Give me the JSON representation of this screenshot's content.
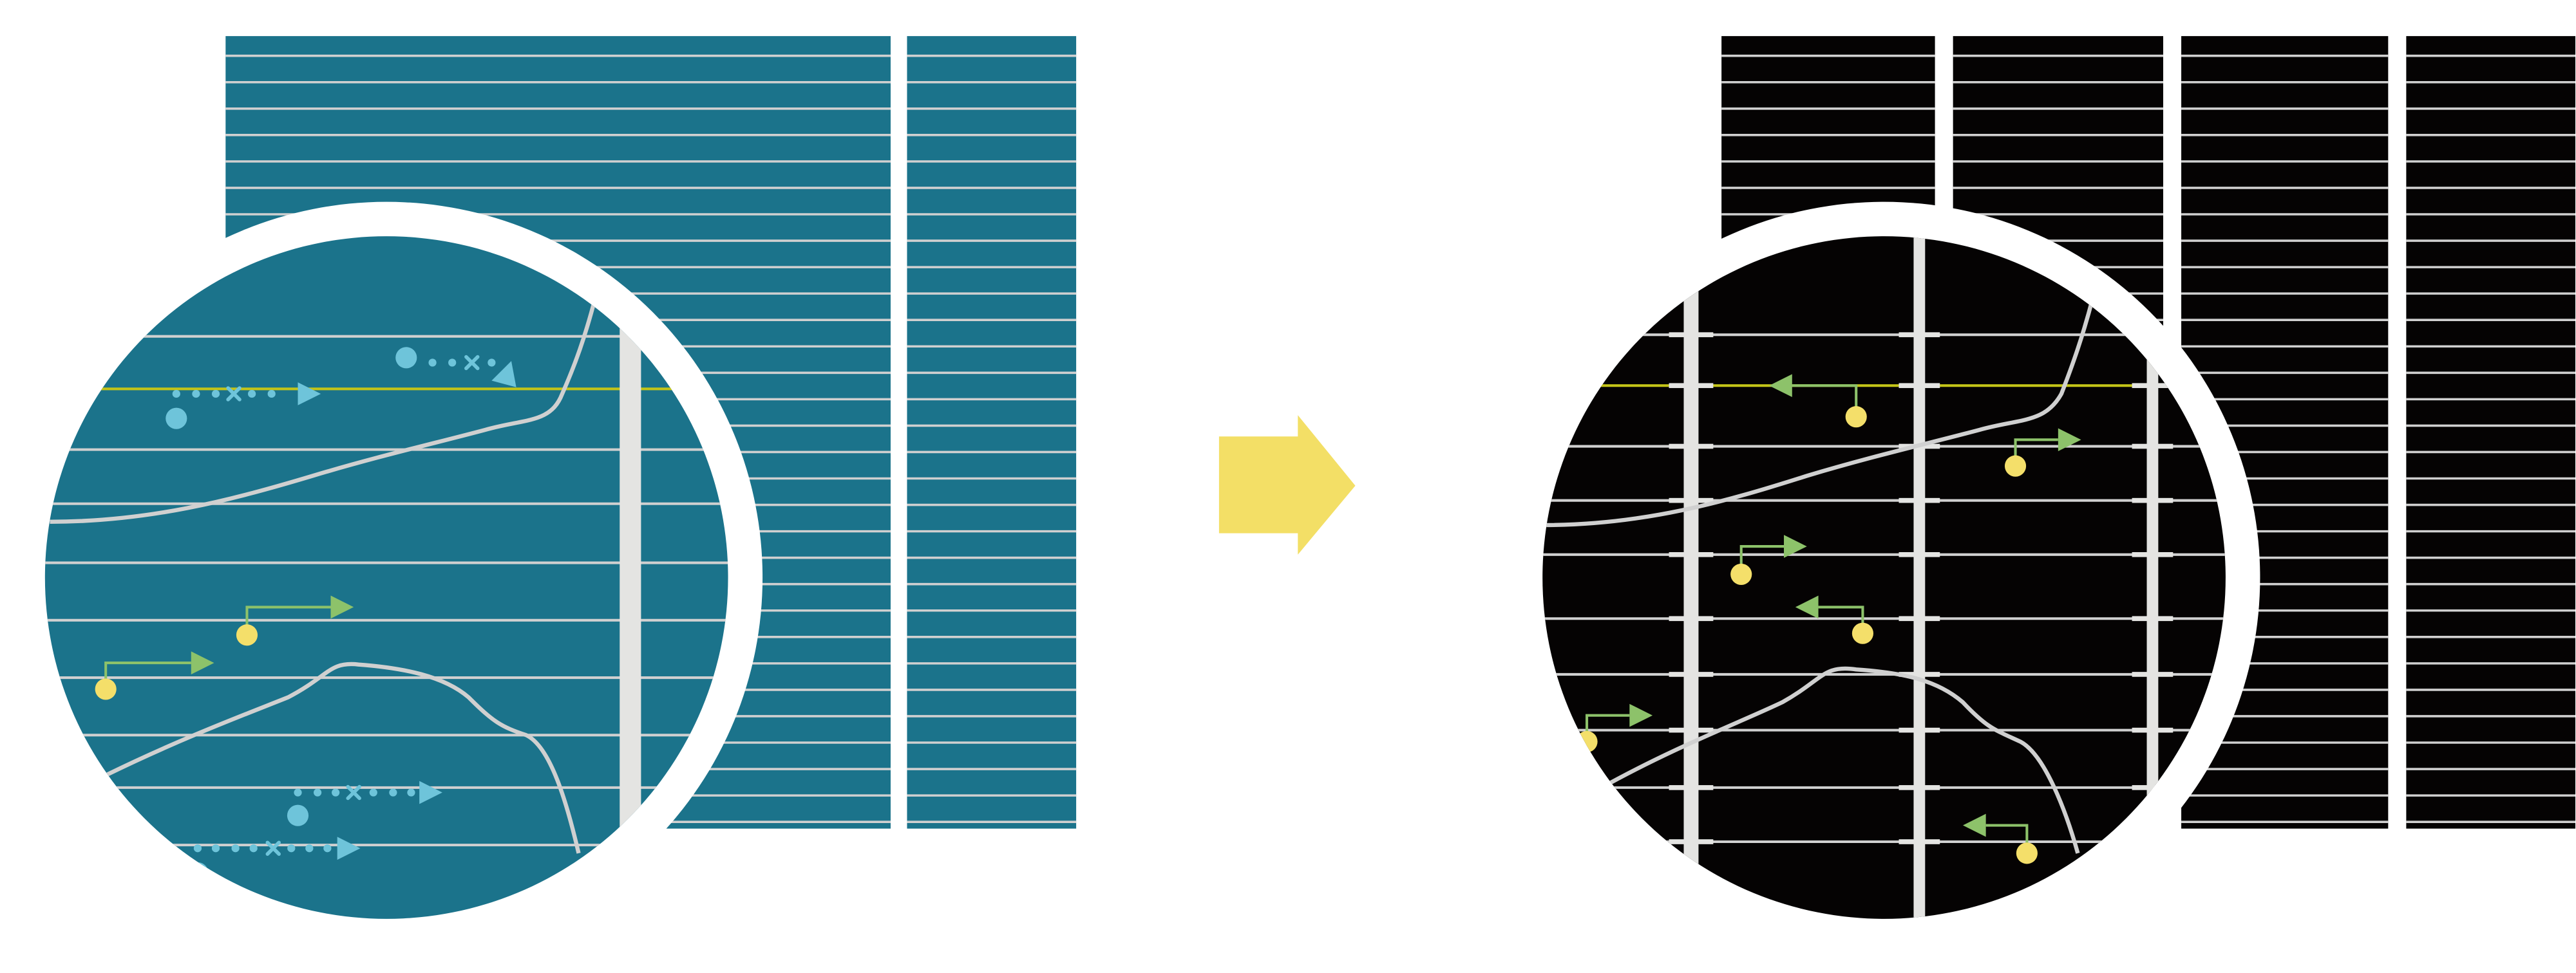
{
  "colors": {
    "background": "#ffffff",
    "before_panel": "#1b738b",
    "after_panel": "#050303",
    "grid_line": "#d0d0d0",
    "bar": "#e4e4e2",
    "highlight_line": "#c3c418",
    "cyan_marker": "#6ec4da",
    "green_arrow": "#8dc26a",
    "yellow_dot": "#f4df6a",
    "transition_arrow": "#f3df66"
  },
  "icons": {
    "before": "magnifier-teal-grid",
    "transition": "arrow-right-icon",
    "after": "magnifier-black-grid"
  }
}
